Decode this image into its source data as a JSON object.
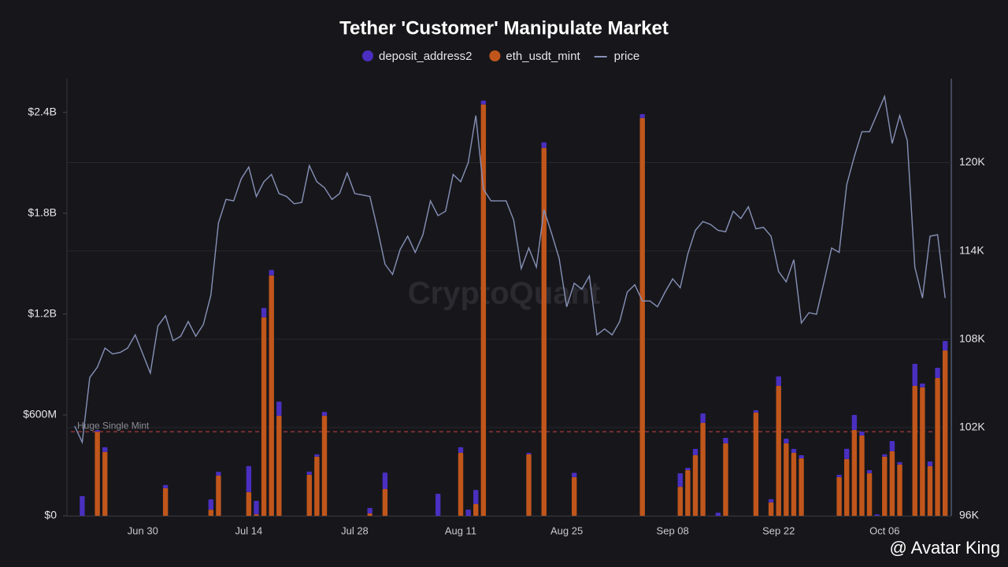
{
  "chart_data": {
    "type": "bar",
    "title": "Tether 'Customer' Manipulate Market",
    "watermark": "CryptoQuant",
    "credit": "@ Avatar King",
    "categories": [
      null,
      null,
      null,
      null,
      null,
      null,
      null,
      null,
      null,
      "Jun 30",
      null,
      null,
      null,
      null,
      null,
      null,
      null,
      null,
      null,
      null,
      null,
      null,
      null,
      "Jul 14",
      null,
      null,
      null,
      null,
      null,
      null,
      null,
      null,
      null,
      null,
      null,
      null,
      null,
      "Jul 28",
      null,
      null,
      null,
      null,
      null,
      null,
      null,
      null,
      null,
      null,
      null,
      null,
      null,
      "Aug 11",
      null,
      null,
      null,
      null,
      null,
      null,
      null,
      null,
      null,
      null,
      null,
      null,
      null,
      "Aug 25",
      null,
      null,
      null,
      null,
      null,
      null,
      null,
      null,
      null,
      null,
      null,
      null,
      null,
      "Sep 08",
      null,
      null,
      null,
      null,
      null,
      null,
      null,
      null,
      null,
      null,
      null,
      null,
      null,
      "Sep 22",
      null,
      null,
      null,
      null,
      null,
      null,
      null,
      null,
      null,
      null,
      null,
      null,
      null,
      "Oct 06",
      null,
      null,
      null,
      null,
      null,
      null,
      null,
      null
    ],
    "series": [
      {
        "name": "deposit_address2",
        "type": "bar",
        "color": "#4a2fc0",
        "values": [
          0,
          117,
          0,
          10,
          28,
          0,
          0,
          0,
          0,
          0,
          0,
          0,
          19,
          0,
          0,
          0,
          0,
          0,
          61,
          23,
          0,
          0,
          0,
          155,
          80,
          56,
          33,
          84,
          0,
          0,
          0,
          19,
          14,
          23,
          0,
          0,
          0,
          0,
          0,
          33,
          0,
          98,
          0,
          0,
          0,
          0,
          0,
          0,
          131,
          0,
          0,
          33,
          37,
          84,
          23,
          0,
          0,
          0,
          0,
          0,
          9,
          0,
          33,
          0,
          0,
          0,
          26,
          0,
          0,
          0,
          0,
          0,
          0,
          0,
          0,
          23,
          0,
          0,
          0,
          0,
          80,
          14,
          37,
          56,
          0,
          19,
          33,
          0,
          0,
          0,
          14,
          0,
          19,
          56,
          28,
          23,
          19,
          0,
          0,
          0,
          0,
          14,
          61,
          89,
          23,
          19,
          9,
          14,
          61,
          14,
          0,
          131,
          23,
          28,
          61,
          56
        ]
      },
      {
        "name": "eth_usdt_mint",
        "type": "bar",
        "color": "#c0561c",
        "values": [
          0,
          0,
          0,
          500,
          380,
          0,
          0,
          0,
          0,
          0,
          0,
          0,
          164,
          0,
          0,
          0,
          0,
          0,
          37,
          239,
          0,
          0,
          0,
          141,
          9,
          1181,
          1430,
          595,
          0,
          0,
          0,
          244,
          352,
          595,
          0,
          0,
          0,
          0,
          0,
          14,
          0,
          159,
          0,
          0,
          0,
          0,
          0,
          0,
          0,
          0,
          0,
          375,
          0,
          70,
          2447,
          0,
          0,
          0,
          0,
          0,
          366,
          0,
          2189,
          0,
          0,
          0,
          230,
          0,
          0,
          0,
          0,
          0,
          0,
          0,
          0,
          2367,
          0,
          0,
          0,
          0,
          173,
          272,
          361,
          553,
          0,
          0,
          431,
          0,
          0,
          0,
          614,
          0,
          80,
          773,
          431,
          375,
          342,
          0,
          0,
          0,
          0,
          230,
          338,
          511,
          478,
          253,
          0,
          352,
          384,
          305,
          0,
          773,
          764,
          295,
          820,
          984
        ]
      },
      {
        "name": "price",
        "type": "line",
        "axis": "y2",
        "color": "#8791b8",
        "values": [
          102.1,
          101.0,
          105.4,
          106.1,
          107.4,
          107.0,
          107.1,
          107.4,
          108.3,
          107.0,
          105.7,
          108.9,
          109.6,
          107.9,
          108.2,
          109.2,
          108.2,
          109.0,
          111.0,
          115.9,
          117.5,
          117.4,
          118.9,
          119.7,
          117.7,
          118.7,
          119.2,
          117.9,
          117.7,
          117.2,
          117.3,
          119.8,
          118.7,
          118.3,
          117.5,
          117.9,
          119.3,
          117.9,
          117.8,
          117.7,
          115.5,
          113.1,
          112.4,
          114.1,
          115.0,
          113.9,
          115.1,
          117.4,
          116.4,
          116.7,
          119.2,
          118.7,
          120.0,
          123.2,
          118.2,
          117.4,
          117.4,
          117.4,
          116.1,
          112.8,
          114.2,
          112.9,
          116.8,
          115.2,
          113.5,
          110.2,
          111.8,
          111.4,
          112.3,
          108.3,
          108.7,
          108.3,
          109.2,
          111.2,
          111.7,
          110.6,
          110.6,
          110.2,
          111.2,
          112.1,
          111.5,
          113.8,
          115.4,
          116.0,
          115.8,
          115.4,
          115.3,
          116.7,
          116.2,
          117.0,
          115.5,
          115.6,
          115.0,
          112.6,
          111.9,
          113.4,
          109.1,
          109.8,
          109.7,
          111.9,
          114.2,
          113.9,
          118.5,
          120.4,
          122.1,
          122.1,
          123.3,
          124.5,
          121.3,
          123.2,
          121.5,
          112.9,
          110.8,
          115.0,
          115.1,
          110.8
        ]
      }
    ],
    "ylim": [
      0,
      2600
    ],
    "yticks": [
      {
        "value": 0,
        "label": "$0"
      },
      {
        "value": 600,
        "label": "$600M"
      },
      {
        "value": 1200,
        "label": "$1.2B"
      },
      {
        "value": 1800,
        "label": "$1.8B"
      },
      {
        "value": 2400,
        "label": "$2.4B"
      }
    ],
    "y2lim": [
      96,
      125.7
    ],
    "y2ticks": [
      {
        "value": 96,
        "label": "96K"
      },
      {
        "value": 102,
        "label": "102K"
      },
      {
        "value": 108,
        "label": "108K"
      },
      {
        "value": 114,
        "label": "114K"
      },
      {
        "value": 120,
        "label": "120K"
      }
    ],
    "reference_lines": [
      {
        "value": 500,
        "label": "Huge Single Mint",
        "color": "#a83a3a"
      }
    ],
    "grid": true,
    "legend": "top"
  }
}
